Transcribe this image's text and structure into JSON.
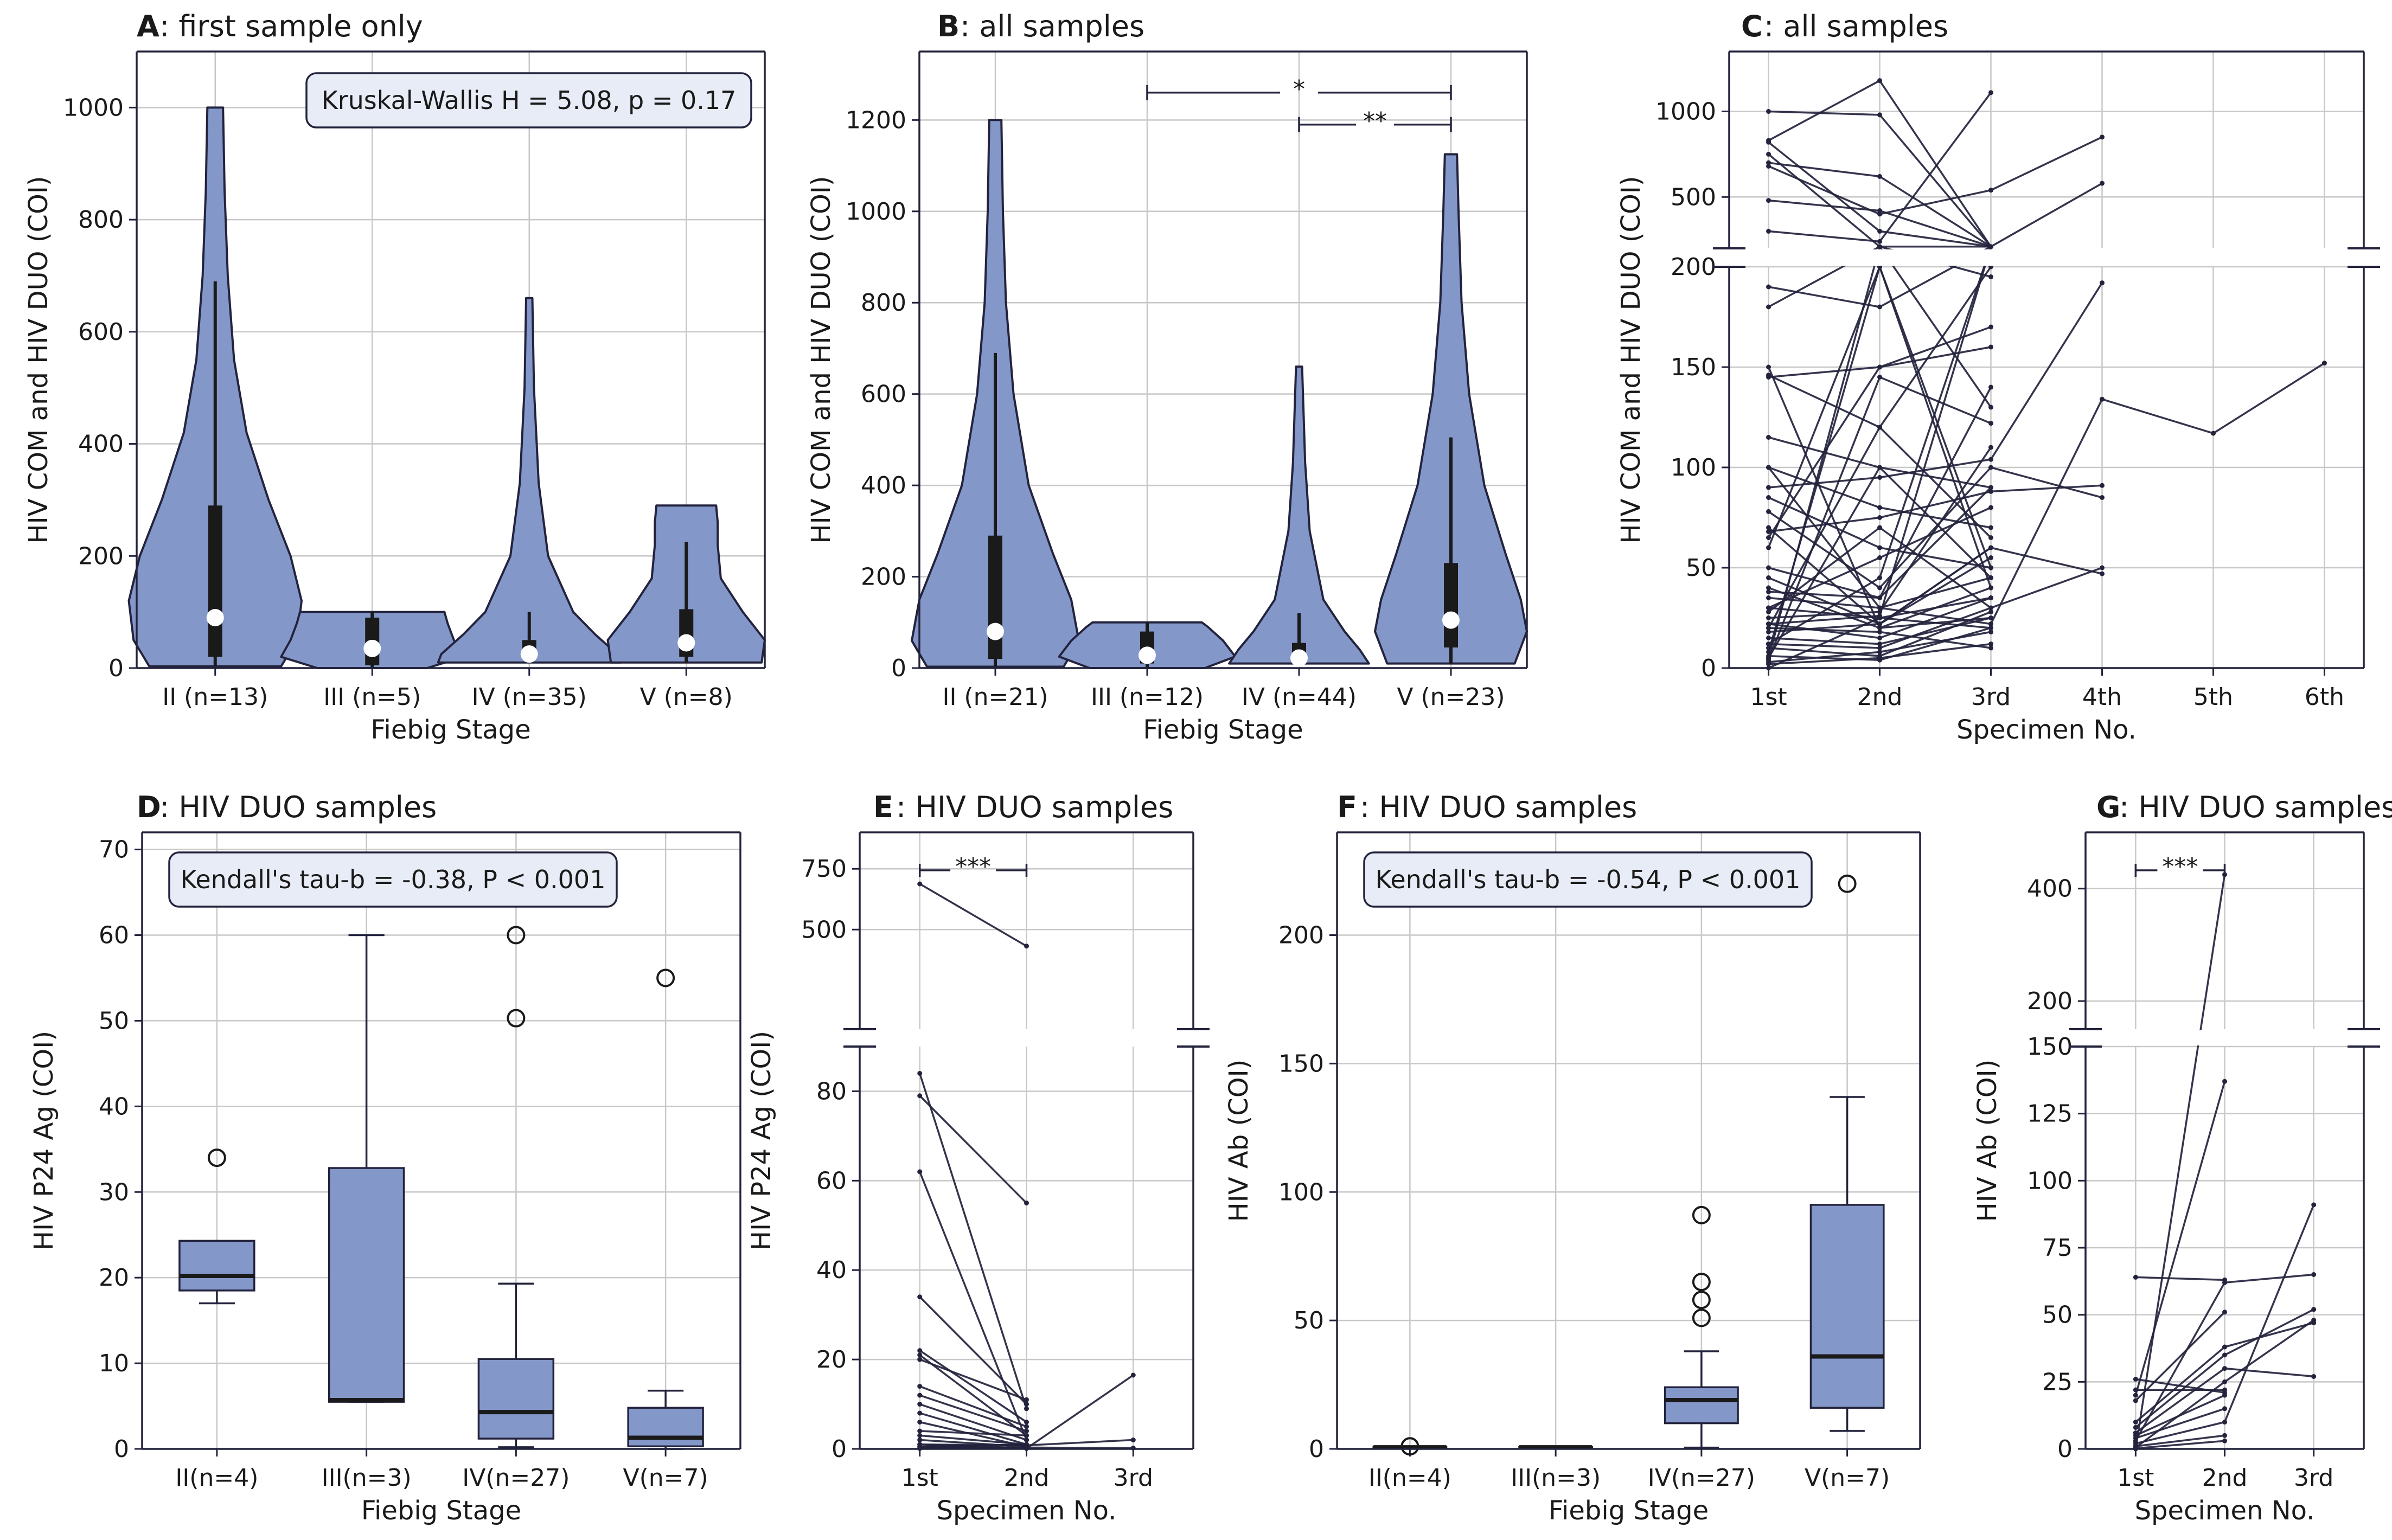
{
  "colors": {
    "fill": "#8497c9",
    "line": "#23233d",
    "grid": "#c8c8c8",
    "annot_bg": "#e8ecf6"
  },
  "chart_data": [
    {
      "id": "A",
      "type": "violin",
      "letter": "A",
      "title": ": first sample only",
      "xlabel": "Fiebig Stage",
      "ylabel": "HIV COM and HIV DUO (COI)",
      "ylim": [
        0,
        1100
      ],
      "yticks": [
        0,
        200,
        400,
        600,
        800,
        1000
      ],
      "categories": [
        "II (n=13)",
        "III (n=5)",
        "IV (n=35)",
        "V (n=8)"
      ],
      "annotation": "Kruskal-Wallis H = 5.08, p = 0.17",
      "violins": [
        {
          "min": 3,
          "max": 1000,
          "q1": 20,
          "q3": 290,
          "median": 90,
          "wl": 3,
          "wh": 690,
          "profile": [
            [
              3,
              0.42
            ],
            [
              50,
              0.52
            ],
            [
              120,
              0.55
            ],
            [
              200,
              0.48
            ],
            [
              300,
              0.34
            ],
            [
              420,
              0.2
            ],
            [
              550,
              0.12
            ],
            [
              700,
              0.08
            ],
            [
              850,
              0.06
            ],
            [
              1000,
              0.05
            ]
          ]
        },
        {
          "min": 0,
          "max": 100,
          "q1": 5,
          "q3": 90,
          "median": 35,
          "wl": 0,
          "wh": 100,
          "profile": [
            [
              0,
              0.35
            ],
            [
              20,
              0.58
            ],
            [
              50,
              0.52
            ],
            [
              80,
              0.48
            ],
            [
              100,
              0.46
            ]
          ]
        },
        {
          "min": 10,
          "max": 660,
          "q1": 15,
          "q3": 50,
          "median": 25,
          "wl": 10,
          "wh": 100,
          "profile": [
            [
              10,
              0.58
            ],
            [
              25,
              0.56
            ],
            [
              60,
              0.42
            ],
            [
              100,
              0.28
            ],
            [
              200,
              0.12
            ],
            [
              330,
              0.06
            ],
            [
              500,
              0.03
            ],
            [
              660,
              0.02
            ]
          ]
        },
        {
          "min": 10,
          "max": 290,
          "q1": 20,
          "q3": 105,
          "median": 45,
          "wl": 10,
          "wh": 225,
          "profile": [
            [
              10,
              0.48
            ],
            [
              50,
              0.5
            ],
            [
              100,
              0.36
            ],
            [
              160,
              0.22
            ],
            [
              220,
              0.2
            ],
            [
              260,
              0.2
            ],
            [
              290,
              0.19
            ]
          ]
        }
      ]
    },
    {
      "id": "B",
      "type": "violin",
      "letter": "B",
      "title": ": all samples",
      "xlabel": "Fiebig Stage",
      "ylabel": "HIV COM and HIV DUO (COI)",
      "ylim": [
        0,
        1350
      ],
      "yticks": [
        0,
        200,
        400,
        600,
        800,
        1000,
        1200
      ],
      "categories": [
        "II (n=21)",
        "III (n=12)",
        "IV (n=44)",
        "V (n=23)"
      ],
      "brackets": [
        {
          "from": 1,
          "to": 3,
          "y": 1260,
          "label": "*"
        },
        {
          "from": 2,
          "to": 3,
          "y": 1190,
          "label": "**"
        }
      ],
      "violins": [
        {
          "min": 3,
          "max": 1200,
          "q1": 20,
          "q3": 290,
          "median": 80,
          "wl": 3,
          "wh": 690,
          "profile": [
            [
              3,
              0.45
            ],
            [
              60,
              0.55
            ],
            [
              150,
              0.5
            ],
            [
              250,
              0.38
            ],
            [
              400,
              0.22
            ],
            [
              600,
              0.12
            ],
            [
              800,
              0.07
            ],
            [
              1000,
              0.05
            ],
            [
              1200,
              0.04
            ]
          ]
        },
        {
          "min": 0,
          "max": 100,
          "q1": 10,
          "q3": 80,
          "median": 28,
          "wl": 0,
          "wh": 100,
          "profile": [
            [
              0,
              0.38
            ],
            [
              25,
              0.58
            ],
            [
              60,
              0.5
            ],
            [
              90,
              0.4
            ],
            [
              100,
              0.36
            ]
          ]
        },
        {
          "min": 10,
          "max": 660,
          "q1": 15,
          "q3": 55,
          "median": 22,
          "wl": 10,
          "wh": 120,
          "profile": [
            [
              10,
              0.46
            ],
            [
              40,
              0.4
            ],
            [
              80,
              0.3
            ],
            [
              150,
              0.16
            ],
            [
              300,
              0.07
            ],
            [
              450,
              0.04
            ],
            [
              660,
              0.02
            ]
          ]
        },
        {
          "min": 10,
          "max": 1125,
          "q1": 45,
          "q3": 230,
          "median": 105,
          "wl": 10,
          "wh": 505,
          "profile": [
            [
              10,
              0.42
            ],
            [
              80,
              0.5
            ],
            [
              150,
              0.46
            ],
            [
              250,
              0.36
            ],
            [
              400,
              0.22
            ],
            [
              600,
              0.12
            ],
            [
              800,
              0.07
            ],
            [
              1000,
              0.05
            ],
            [
              1125,
              0.04
            ]
          ]
        }
      ]
    },
    {
      "id": "C",
      "type": "line",
      "letter": "C",
      "title": ": all samples",
      "xlabel": "Specimen No.",
      "ylabel": "HIV COM and HIV DUO (COI)",
      "categories": [
        "1st",
        "2nd",
        "3rd",
        "4th",
        "5th",
        "6th"
      ],
      "lower": {
        "ylim": [
          0,
          200
        ],
        "yticks": [
          0,
          50,
          100,
          150,
          200
        ]
      },
      "upper": {
        "ylim": [
          200,
          1350
        ],
        "yticks": [
          500,
          1000
        ]
      },
      "series": [
        [
          1000,
          980,
          210
        ],
        [
          830,
          1180,
          210
        ],
        [
          820,
          300,
          210
        ],
        [
          700,
          620,
          210
        ],
        [
          680,
          400,
          540,
          850
        ],
        [
          480,
          420,
          210,
          580
        ],
        [
          300,
          240,
          1110
        ],
        [
          750,
          210,
          195
        ],
        [
          190,
          180,
          210
        ],
        [
          180,
          210,
          130
        ],
        [
          145,
          150,
          160
        ],
        [
          146,
          120,
          200
        ],
        [
          115,
          100,
          90
        ],
        [
          100,
          80,
          70
        ],
        [
          90,
          95,
          104,
          192
        ],
        [
          85,
          60,
          50
        ],
        [
          78,
          40,
          100,
          85
        ],
        [
          70,
          22,
          60,
          47
        ],
        [
          68,
          75,
          88,
          91
        ],
        [
          60,
          200,
          50
        ],
        [
          40,
          20,
          40
        ],
        [
          38,
          35,
          140
        ],
        [
          35,
          30,
          45
        ],
        [
          30,
          25,
          20
        ],
        [
          28,
          70,
          30,
          50
        ],
        [
          25,
          28,
          110
        ],
        [
          22,
          15,
          35
        ],
        [
          20,
          18,
          10
        ],
        [
          18,
          22,
          55
        ],
        [
          15,
          12,
          25
        ],
        [
          12,
          10,
          30
        ],
        [
          10,
          6,
          28
        ],
        [
          8,
          200,
          40
        ],
        [
          6,
          4,
          20
        ],
        [
          5,
          100,
          45
        ],
        [
          4,
          145,
          122
        ],
        [
          3,
          8,
          18
        ],
        [
          2,
          5,
          12
        ],
        [
          45,
          22,
          60
        ],
        [
          50,
          35,
          90
        ],
        [
          150,
          20,
          25
        ],
        [
          65,
          150,
          170
        ],
        [
          22,
          26,
          210
        ],
        [
          30,
          55,
          80
        ],
        [
          20,
          120,
          65
        ],
        [
          0,
          25,
          35
        ],
        [
          5,
          210,
          210
        ],
        [
          12,
          45,
          210
        ],
        [
          100,
          30,
          22,
          134,
          117,
          152
        ]
      ]
    },
    {
      "id": "D",
      "type": "box",
      "letter": "D",
      "title": ": HIV DUO samples",
      "xlabel": "Fiebig Stage",
      "ylabel": "HIV P24 Ag (COI)",
      "ylim": [
        0,
        72
      ],
      "yticks": [
        0,
        10,
        20,
        30,
        40,
        50,
        60,
        70
      ],
      "categories": [
        "II(n=4)",
        "III(n=3)",
        "IV(n=27)",
        "V(n=7)"
      ],
      "annotation": "Kendall's tau-b = -0.38, P < 0.001",
      "boxes": [
        {
          "wl": 17,
          "q1": 18.5,
          "med": 20.2,
          "q3": 24.3,
          "wh": 24.3,
          "outliers": [
            34
          ]
        },
        {
          "wl": 5.5,
          "q1": 5.5,
          "med": 5.7,
          "q3": 32.8,
          "wh": 60,
          "outliers": []
        },
        {
          "wl": 0.2,
          "q1": 1.2,
          "med": 4.3,
          "q3": 10.5,
          "wh": 19.3,
          "outliers": [
            50.3,
            60
          ]
        },
        {
          "wl": 0,
          "q1": 0.3,
          "med": 1.3,
          "q3": 4.8,
          "wh": 6.8,
          "outliers": [
            55
          ]
        }
      ]
    },
    {
      "id": "E",
      "type": "line",
      "letter": "E",
      "title": ": HIV DUO samples",
      "xlabel": "Specimen No.",
      "ylabel": "HIV P24 Ag (COI)",
      "categories": [
        "1st",
        "2nd",
        "3rd"
      ],
      "lower": {
        "ylim": [
          0,
          90
        ],
        "yticks": [
          0,
          20,
          40,
          60,
          80
        ]
      },
      "upper": {
        "ylim": [
          90,
          900
        ],
        "yticks": [
          500,
          750
        ]
      },
      "bracket": {
        "from": 0,
        "to": 1,
        "label": "***"
      },
      "series": [
        [
          688,
          432
        ],
        [
          84,
          9
        ],
        [
          79,
          55
        ],
        [
          62,
          2
        ],
        [
          34,
          10
        ],
        [
          22,
          6
        ],
        [
          21,
          3
        ],
        [
          20,
          11
        ],
        [
          14,
          5
        ],
        [
          12,
          4
        ],
        [
          10,
          2
        ],
        [
          8,
          1
        ],
        [
          6,
          0.5
        ],
        [
          4,
          3
        ],
        [
          3,
          1
        ],
        [
          2,
          0.5
        ],
        [
          1,
          0.2
        ],
        [
          0.5,
          1
        ],
        [
          0.2,
          0.1
        ],
        [
          0.1,
          0.1,
          16.5
        ],
        [
          0.5,
          0.3,
          0.2
        ],
        [
          1,
          0.8,
          2
        ]
      ]
    },
    {
      "id": "F",
      "type": "box",
      "letter": "F",
      "title": ": HIV DUO samples",
      "xlabel": "Fiebig Stage",
      "ylabel": "HIV Ab (COI)",
      "ylim": [
        0,
        240
      ],
      "yticks": [
        0,
        50,
        100,
        150,
        200
      ],
      "categories": [
        "II(n=4)",
        "III(n=3)",
        "IV(n=27)",
        "V(n=7)"
      ],
      "annotation": "Kendall's tau-b = -0.54, P < 0.001",
      "boxes": [
        {
          "wl": 0.5,
          "q1": 0.5,
          "med": 0.6,
          "q3": 0.7,
          "wh": 0.8,
          "outliers": [
            1
          ]
        },
        {
          "wl": 0.5,
          "q1": 0.5,
          "med": 0.6,
          "q3": 0.7,
          "wh": 0.8,
          "outliers": []
        },
        {
          "wl": 0.5,
          "q1": 10,
          "med": 19,
          "q3": 24,
          "wh": 38,
          "outliers": [
            51,
            58,
            65,
            91
          ]
        },
        {
          "wl": 7,
          "q1": 16,
          "med": 36,
          "q3": 95,
          "wh": 137,
          "outliers": [
            220
          ]
        }
      ]
    },
    {
      "id": "G",
      "type": "line",
      "letter": "G",
      "title": ": HIV DUO samples",
      "xlabel": "Specimen No.",
      "ylabel": "HIV Ab (COI)",
      "categories": [
        "1st",
        "2nd",
        "3rd"
      ],
      "lower": {
        "ylim": [
          0,
          150
        ],
        "yticks": [
          0,
          25,
          50,
          75,
          100,
          125,
          150
        ]
      },
      "upper": {
        "ylim": [
          150,
          500
        ],
        "yticks": [
          200,
          400
        ]
      },
      "bracket": {
        "from": 0,
        "to": 1,
        "label": "***"
      },
      "series": [
        [
          0,
          425
        ],
        [
          64,
          63
        ],
        [
          26,
          21
        ],
        [
          22,
          22
        ],
        [
          20,
          137
        ],
        [
          18,
          51
        ],
        [
          10,
          38,
          47
        ],
        [
          8,
          35,
          52
        ],
        [
          6,
          30,
          27
        ],
        [
          5,
          20
        ],
        [
          4,
          15
        ],
        [
          3,
          62,
          65
        ],
        [
          2,
          10,
          91
        ],
        [
          1,
          5
        ],
        [
          0.5,
          25,
          48
        ],
        [
          0.2,
          3
        ]
      ]
    }
  ]
}
